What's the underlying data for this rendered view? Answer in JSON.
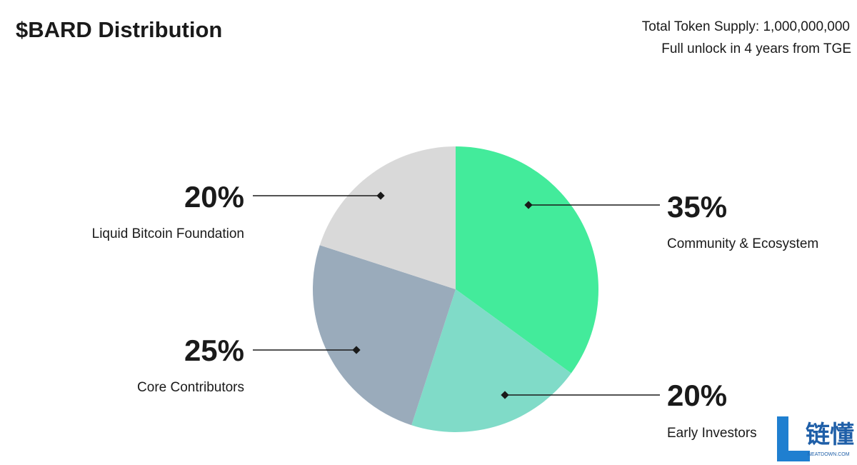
{
  "chart_data": {
    "type": "pie",
    "title": "$BARD Distribution",
    "subtitle": [
      "Total Token Supply: 1,000,000,000",
      "Full unlock in 4 years from TGE"
    ],
    "categories": [
      "Community & Ecosystem",
      "Early Investors",
      "Core Contributors",
      "Liquid Bitcoin Foundation"
    ],
    "values": [
      35,
      20,
      25,
      20
    ],
    "value_labels": [
      "35%",
      "20%",
      "25%",
      "20%"
    ],
    "colors": [
      "#43eb9b",
      "#80dbc8",
      "#9aabbb",
      "#d9d9d9"
    ]
  },
  "watermark": {
    "text": "链懂",
    "subtext": "NEATDOWN.COM"
  }
}
